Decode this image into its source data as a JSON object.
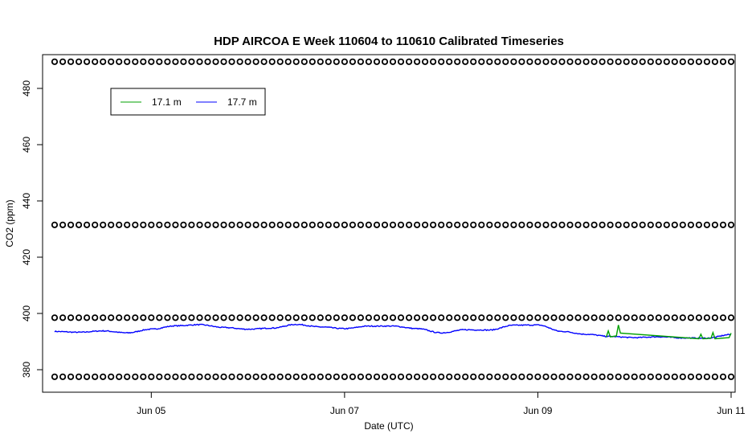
{
  "chart_data": {
    "type": "line",
    "title": "HDP AIRCOA E  Week 110604 to 110610  Calibrated Timeseries",
    "xlabel": "Date (UTC)",
    "ylabel": "CO2 (ppm)",
    "xlim": [
      "2011-06-03T21:00",
      "2011-06-11T01:00"
    ],
    "ylim": [
      372,
      492
    ],
    "x_ticks": [
      "Jun 05",
      "Jun 07",
      "Jun 09",
      "Jun 11"
    ],
    "x_tick_dates": [
      "2011-06-05",
      "2011-06-07",
      "2011-06-09",
      "2011-06-11"
    ],
    "y_ticks": [
      380,
      400,
      420,
      440,
      460,
      480
    ],
    "legend": {
      "position": "top-left",
      "entries": [
        "17.1 m",
        "17.7 m"
      ]
    },
    "reference_levels": {
      "start": "2011-06-04T00:00",
      "end": "2011-06-11T00:00",
      "interval_hours": 2,
      "levels": [
        377.5,
        398.5,
        431.5,
        489.5
      ]
    },
    "series": [
      {
        "name": "17.7 m",
        "color": "#0000ff",
        "points": [
          [
            "2011-06-04T00:00",
            393.6
          ],
          [
            "2011-06-04T06:00",
            393.3
          ],
          [
            "2011-06-04T12:00",
            393.8
          ],
          [
            "2011-06-04T18:00",
            393.1
          ],
          [
            "2011-06-05T00:00",
            394.4
          ],
          [
            "2011-06-05T06:00",
            395.6
          ],
          [
            "2011-06-05T12:00",
            396.0
          ],
          [
            "2011-06-05T18:00",
            395.0
          ],
          [
            "2011-06-06T00:00",
            394.4
          ],
          [
            "2011-06-06T06:00",
            394.8
          ],
          [
            "2011-06-06T12:00",
            396.1
          ],
          [
            "2011-06-06T18:00",
            395.2
          ],
          [
            "2011-06-07T00:00",
            394.6
          ],
          [
            "2011-06-07T06:00",
            395.5
          ],
          [
            "2011-06-07T12:00",
            395.5
          ],
          [
            "2011-06-07T18:00",
            394.6
          ],
          [
            "2011-06-08T00:00",
            393.1
          ],
          [
            "2011-06-08T06:00",
            394.2
          ],
          [
            "2011-06-08T12:00",
            394.1
          ],
          [
            "2011-06-08T18:00",
            395.8
          ],
          [
            "2011-06-09T00:00",
            395.9
          ],
          [
            "2011-06-09T06:00",
            393.6
          ],
          [
            "2011-06-09T12:00",
            392.6
          ],
          [
            "2011-06-09T18:00",
            391.8
          ],
          [
            "2011-06-10T00:00",
            391.4
          ],
          [
            "2011-06-10T06:00",
            391.7
          ],
          [
            "2011-06-10T12:00",
            391.3
          ],
          [
            "2011-06-10T18:00",
            391.2
          ],
          [
            "2011-06-11T00:00",
            392.5
          ]
        ]
      },
      {
        "name": "17.1 m",
        "color": "#00a000",
        "points": [
          [
            "2011-06-09T17:00",
            391.6
          ],
          [
            "2011-06-09T17:30",
            393.8
          ],
          [
            "2011-06-09T18:00",
            391.7
          ],
          [
            "2011-06-09T19:30",
            392.0
          ],
          [
            "2011-06-09T20:00",
            395.9
          ],
          [
            "2011-06-09T20:30",
            393.0
          ],
          [
            "2011-06-10T16:00",
            391.0
          ],
          [
            "2011-06-10T16:30",
            392.6
          ],
          [
            "2011-06-10T17:00",
            391.0
          ],
          [
            "2011-06-10T19:00",
            391.2
          ],
          [
            "2011-06-10T19:30",
            393.2
          ],
          [
            "2011-06-10T20:00",
            391.0
          ],
          [
            "2011-06-10T23:30",
            391.4
          ],
          [
            "2011-06-11T00:00",
            393.0
          ]
        ]
      }
    ]
  }
}
